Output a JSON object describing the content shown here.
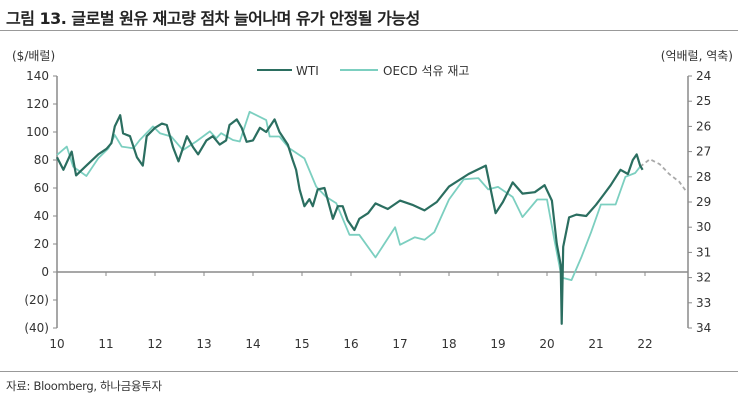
{
  "title": "그림 13. 글로벌 원유 재고량 점차 늘어나며 유가 안정될 가능성",
  "source": "자료: Bloomberg, 하나금융투자",
  "chart_data": {
    "type": "line",
    "title": "그림 13. 글로벌 원유 재고량 점차 늘어나며 유가 안정될 가능성",
    "y_left": {
      "label": "($/배럴)",
      "range": [
        -40,
        140
      ],
      "ticks": [
        140,
        120,
        100,
        80,
        60,
        40,
        20,
        0,
        -20,
        -40
      ],
      "tick_labels": [
        "140",
        "120",
        "100",
        "80",
        "60",
        "40",
        "20",
        "0",
        "(20)",
        "(40)"
      ]
    },
    "y_right": {
      "label": "(억배럴, 역축)",
      "range": [
        24,
        34
      ],
      "inverted": true,
      "ticks": [
        24,
        25,
        26,
        27,
        28,
        29,
        30,
        31,
        32,
        33,
        34
      ],
      "tick_labels": [
        "24",
        "25",
        "26",
        "27",
        "28",
        "29",
        "30",
        "31",
        "32",
        "33",
        "34"
      ]
    },
    "x": {
      "range": [
        2010,
        2023
      ],
      "tick_labels": [
        "10",
        "11",
        "12",
        "13",
        "14",
        "15",
        "16",
        "17",
        "18",
        "19",
        "20",
        "21",
        "22"
      ]
    },
    "legend": {
      "placement": "top-center",
      "entries": [
        "WTI",
        "OECD 석유 재고"
      ]
    },
    "grid": false,
    "series": [
      {
        "name": "WTI",
        "axis": "left",
        "color": "#2b6e60",
        "x": [
          2010.0,
          2010.13,
          2010.3,
          2010.39,
          2010.6,
          2010.84,
          2011.01,
          2011.11,
          2011.18,
          2011.29,
          2011.35,
          2011.49,
          2011.63,
          2011.75,
          2011.83,
          2012.0,
          2012.14,
          2012.24,
          2012.37,
          2012.48,
          2012.65,
          2012.78,
          2012.88,
          2013.05,
          2013.18,
          2013.32,
          2013.45,
          2013.52,
          2013.67,
          2013.77,
          2013.87,
          2014.0,
          2014.14,
          2014.27,
          2014.44,
          2014.54,
          2014.71,
          2014.81,
          2014.88,
          2014.95,
          2015.05,
          2015.15,
          2015.22,
          2015.32,
          2015.46,
          2015.63,
          2015.73,
          2015.83,
          2015.93,
          2016.07,
          2016.17,
          2016.35,
          2016.5,
          2016.75,
          2017.0,
          2017.25,
          2017.5,
          2017.75,
          2018.0,
          2018.4,
          2018.75,
          2018.95,
          2019.1,
          2019.3,
          2019.5,
          2019.75,
          2019.95,
          2020.1,
          2020.2,
          2020.28,
          2020.3,
          2020.33,
          2020.45,
          2020.6,
          2020.8,
          2021.0,
          2021.15,
          2021.3,
          2021.5,
          2021.65,
          2021.75,
          2021.83,
          2021.9,
          2021.95
        ],
        "values": [
          82,
          73,
          86,
          69,
          76,
          84,
          88,
          92,
          104,
          112,
          99,
          97,
          82,
          76,
          97,
          103,
          106,
          105,
          89,
          79,
          97,
          89,
          84,
          94,
          97,
          91,
          94,
          105,
          109,
          103,
          93,
          94,
          103,
          100,
          109,
          100,
          91,
          80,
          73,
          59,
          47,
          52,
          47,
          59,
          60,
          38,
          47,
          47,
          37,
          30,
          38,
          42,
          49,
          45,
          51,
          48,
          44,
          50,
          61,
          70,
          76,
          42,
          50,
          64,
          56,
          57,
          62,
          51,
          20,
          5,
          -37,
          18,
          39,
          41,
          40,
          48,
          55,
          62,
          73,
          70,
          80,
          84,
          76,
          73
        ]
      },
      {
        "name": "OECD 석유 재고",
        "axis": "right",
        "color": "#7ccfc0",
        "x": [
          2010.0,
          2010.2,
          2010.33,
          2010.6,
          2010.84,
          2011.05,
          2011.18,
          2011.32,
          2011.56,
          2011.69,
          2011.96,
          2012.1,
          2012.33,
          2012.57,
          2012.84,
          2013.12,
          2013.25,
          2013.35,
          2013.59,
          2013.73,
          2013.93,
          2014.27,
          2014.34,
          2014.54,
          2014.74,
          2015.05,
          2015.29,
          2015.49,
          2015.7,
          2015.97,
          2016.17,
          2016.5,
          2016.9,
          2017.0,
          2017.3,
          2017.5,
          2017.7,
          2018.0,
          2018.3,
          2018.6,
          2018.8,
          2019.0,
          2019.3,
          2019.5,
          2019.8,
          2020.0,
          2020.15,
          2020.3,
          2020.5,
          2020.7,
          2020.9,
          2021.1,
          2021.4,
          2021.6,
          2021.8,
          2021.9
        ],
        "values": [
          27.13,
          26.8,
          27.6,
          27.97,
          27.27,
          26.87,
          26.34,
          26.8,
          26.87,
          26.54,
          26.0,
          26.27,
          26.4,
          26.94,
          26.6,
          26.2,
          26.47,
          26.27,
          26.54,
          26.6,
          25.42,
          25.75,
          26.4,
          26.4,
          26.87,
          27.27,
          28.39,
          28.79,
          29.05,
          30.3,
          30.3,
          31.2,
          30.0,
          30.7,
          30.4,
          30.5,
          30.2,
          28.9,
          28.1,
          28.05,
          28.5,
          28.4,
          28.8,
          29.6,
          28.9,
          28.9,
          30.5,
          32.0,
          32.1,
          31.2,
          30.2,
          29.1,
          29.1,
          28.0,
          27.85,
          27.6
        ]
      },
      {
        "axis": "right",
        "color": "#aaaaaa",
        "dashed": true,
        "x": [
          2021.9,
          2022.1,
          2022.3,
          2022.5,
          2022.7,
          2022.85
        ],
        "values": [
          27.6,
          27.3,
          27.5,
          27.9,
          28.2,
          28.6
        ]
      }
    ]
  }
}
